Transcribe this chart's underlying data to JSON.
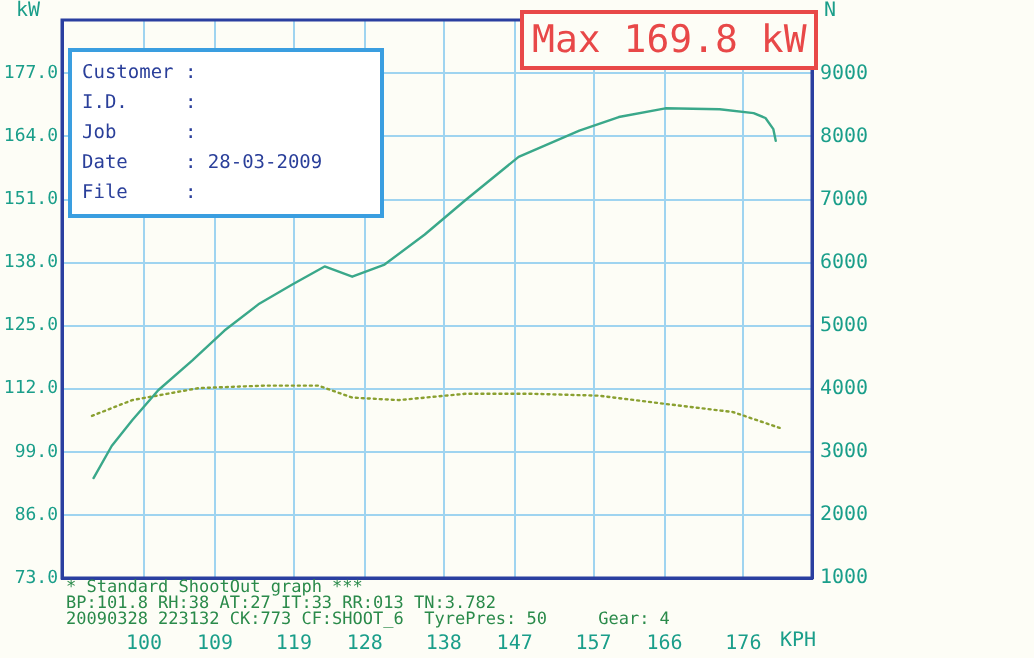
{
  "chart_data": {
    "type": "line",
    "title": "Max 169.8 kW",
    "xlabel": "KPH",
    "ylabel": "kW",
    "y2label": "N",
    "annotations": [
      "Customer :",
      "I.D.     :",
      "Job      :",
      "Date     : 28-03-2009",
      "File     :",
      "* Standard ShootOut graph ***",
      "BP:101.8 RH:38 AT:27 IT:33 RR:013 TN:3.782",
      "20090328 223132 CK:773 CF:SHOOT_6  TyrePres: 50     Gear: 4"
    ],
    "series": [
      {
        "color": "#3aa88a",
        "line_style": "solid",
        "x": [
          93.6,
          95.9,
          98.5,
          101.8,
          106.1,
          110.2,
          114.5,
          118.8,
          122.9,
          126.4,
          130.5,
          135.6,
          140.7,
          147.5,
          155.2,
          160.2,
          166.1,
          173.0,
          177.3,
          178.8,
          179.8,
          180.1
        ],
        "values": [
          93.6,
          100.2,
          105.5,
          111.7,
          117.8,
          124.0,
          129.4,
          133.5,
          137.2,
          135.1,
          137.6,
          143.8,
          150.8,
          159.8,
          165.2,
          168.0,
          169.8,
          169.6,
          168.8,
          167.8,
          165.5,
          163.1
        ]
      },
      {
        "color": "#8aa030",
        "line_style": "dotted",
        "axis": "y2",
        "x": [
          93.4,
          98.5,
          106.9,
          115.3,
          122.1,
          126.4,
          132.3,
          140.7,
          149.3,
          157.7,
          166.1,
          174.7,
          180.6
        ],
        "values": [
          3570,
          3820,
          4010,
          4050,
          4050,
          3860,
          3820,
          3920,
          3920,
          3890,
          3760,
          3630,
          3380
        ]
      }
    ],
    "xlim": [
      89.6,
      184.7
    ],
    "xticks": [
      100,
      109,
      119,
      128,
      138,
      147,
      157,
      166,
      176
    ],
    "ylim": [
      73,
      188
    ],
    "yticks": [
      {
        "value": 73,
        "label": "73.0"
      },
      {
        "value": 86,
        "label": "86.0"
      },
      {
        "value": 99,
        "label": "99.0"
      },
      {
        "value": 112,
        "label": "112.0"
      },
      {
        "value": 125,
        "label": "125.0"
      },
      {
        "value": 138,
        "label": "138.0"
      },
      {
        "value": 151,
        "label": "151.0"
      },
      {
        "value": 164,
        "label": "164.0"
      },
      {
        "value": 177,
        "label": "177.0"
      }
    ],
    "y2lim": [
      1000,
      9846
    ],
    "y2ticks": [
      1000,
      2000,
      3000,
      4000,
      5000,
      6000,
      7000,
      8000,
      9000
    ],
    "grid": true,
    "legend": false,
    "marker": "none"
  }
}
